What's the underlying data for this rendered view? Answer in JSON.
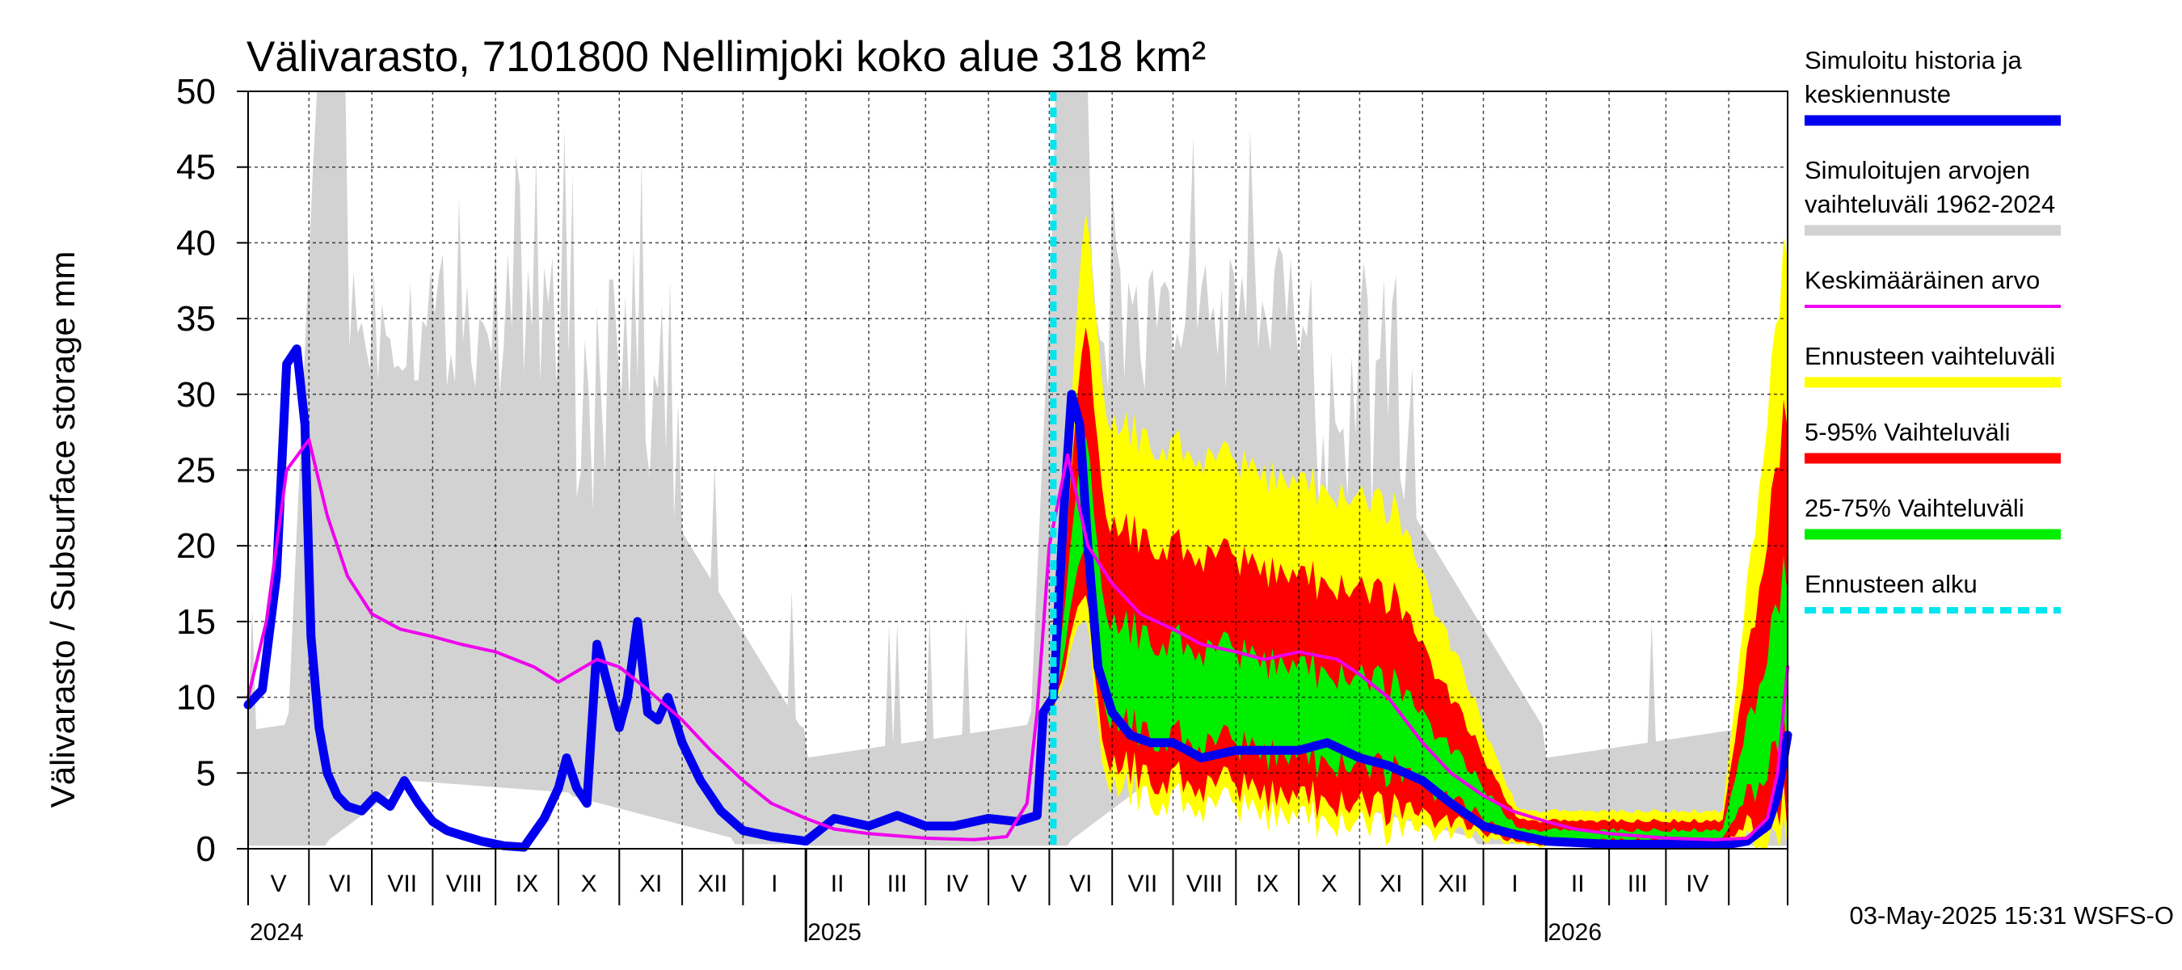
{
  "chart_data": {
    "type": "area",
    "title": "Välivarasto, 7101800 Nellimjoki koko alue 318 km²",
    "ylabel": "Välivarasto / Subsurface storage  mm",
    "ylim": [
      0,
      50
    ],
    "yticks": [
      "0",
      "5",
      "10",
      "15",
      "20",
      "25",
      "30",
      "35",
      "40",
      "45",
      "50"
    ],
    "xlim": [
      "2024-04-01",
      "2026-04-30"
    ],
    "grid": true,
    "legend_position": "right",
    "months": [
      "V",
      "VI",
      "VII",
      "VIII",
      "IX",
      "X",
      "XI",
      "XII",
      "I",
      "II",
      "III",
      "IV",
      "V",
      "VI",
      "VII",
      "VIII",
      "IX",
      "X",
      "XI",
      "XII",
      "I",
      "II",
      "III",
      "IV"
    ],
    "years": [
      "2024",
      "2025",
      "2026"
    ],
    "forecast_start": "2025-05-03",
    "series": [
      {
        "name": "Simuloitu historia ja keskiennuste",
        "color": "#0000ee",
        "x": [
          "2024-04-01",
          "2024-04-08",
          "2024-04-15",
          "2024-04-20",
          "2024-04-25",
          "2024-04-29",
          "2024-05-02",
          "2024-05-06",
          "2024-05-10",
          "2024-05-15",
          "2024-05-20",
          "2024-05-27",
          "2024-06-03",
          "2024-06-10",
          "2024-06-17",
          "2024-06-24",
          "2024-07-01",
          "2024-07-08",
          "2024-07-15",
          "2024-07-25",
          "2024-08-05",
          "2024-08-15",
          "2024-08-25",
          "2024-09-01",
          "2024-09-05",
          "2024-09-10",
          "2024-09-15",
          "2024-09-20",
          "2024-09-25",
          "2024-10-01",
          "2024-10-05",
          "2024-10-10",
          "2024-10-15",
          "2024-10-20",
          "2024-10-25",
          "2024-11-01",
          "2024-11-10",
          "2024-11-20",
          "2024-12-01",
          "2024-12-15",
          "2025-01-01",
          "2025-01-15",
          "2025-02-01",
          "2025-02-15",
          "2025-03-01",
          "2025-03-15",
          "2025-04-01",
          "2025-04-15",
          "2025-04-25",
          "2025-04-28",
          "2025-05-03",
          "2025-05-08",
          "2025-05-12",
          "2025-05-16",
          "2025-05-20",
          "2025-05-25",
          "2025-06-01",
          "2025-06-10",
          "2025-06-20",
          "2025-07-01",
          "2025-07-15",
          "2025-08-01",
          "2025-08-15",
          "2025-09-01",
          "2025-09-15",
          "2025-10-01",
          "2025-10-15",
          "2025-11-01",
          "2025-11-15",
          "2025-12-01",
          "2025-12-15",
          "2026-01-01",
          "2026-02-01",
          "2026-03-01",
          "2026-04-01",
          "2026-04-10",
          "2026-04-20",
          "2026-04-25",
          "2026-04-30"
        ],
        "y": [
          9.5,
          10.5,
          18,
          32,
          33,
          28,
          14,
          8,
          5,
          3.5,
          2.8,
          2.5,
          3.5,
          2.8,
          4.5,
          3,
          1.8,
          1.2,
          0.9,
          0.5,
          0.2,
          0.1,
          2,
          4,
          6,
          4,
          3,
          13.5,
          11,
          8,
          10,
          15,
          9,
          8.5,
          10,
          7,
          4.5,
          2.5,
          1.2,
          0.8,
          0.5,
          2,
          1.5,
          2.2,
          1.5,
          1.5,
          2.0,
          1.8,
          2.2,
          9,
          10,
          22,
          30,
          28,
          20,
          12,
          9,
          7.5,
          7,
          7,
          6,
          6.5,
          6.5,
          6.5,
          7,
          6,
          5.5,
          4.5,
          3,
          1.5,
          1,
          0.5,
          0.3,
          0.3,
          0.3,
          0.5,
          1.5,
          3.5,
          7.5
        ]
      },
      {
        "name": "Keskimääräinen arvo",
        "color": "#ee00ee",
        "x": [
          "2024-04-01",
          "2024-04-10",
          "2024-04-20",
          "2024-05-01",
          "2024-05-10",
          "2024-05-20",
          "2024-06-01",
          "2024-06-15",
          "2024-07-01",
          "2024-07-15",
          "2024-08-01",
          "2024-08-20",
          "2024-09-01",
          "2024-09-20",
          "2024-10-01",
          "2024-10-15",
          "2024-11-01",
          "2024-11-15",
          "2024-12-01",
          "2024-12-15",
          "2025-01-01",
          "2025-01-15",
          "2025-02-01",
          "2025-03-01",
          "2025-03-25",
          "2025-04-10",
          "2025-04-20",
          "2025-04-25",
          "2025-05-01",
          "2025-05-10",
          "2025-05-20",
          "2025-06-01",
          "2025-06-15",
          "2025-07-01",
          "2025-07-15",
          "2025-08-01",
          "2025-08-15",
          "2025-09-01",
          "2025-09-20",
          "2025-10-01",
          "2025-10-15",
          "2025-11-01",
          "2025-11-15",
          "2025-12-01",
          "2025-12-15",
          "2026-01-01",
          "2026-01-15",
          "2026-02-01",
          "2026-03-01",
          "2026-03-25",
          "2026-04-10",
          "2026-04-20",
          "2026-04-25",
          "2026-04-30"
        ],
        "y": [
          10,
          15,
          25,
          27,
          22,
          18,
          15.5,
          14.5,
          14,
          13.5,
          13,
          12,
          11,
          12.5,
          12,
          10.5,
          8.5,
          6.5,
          4.5,
          3,
          2,
          1.3,
          1.0,
          0.7,
          0.6,
          0.8,
          3,
          9,
          20,
          26,
          20,
          17.5,
          15.5,
          14.5,
          13.5,
          13,
          12.5,
          13,
          12.5,
          11.5,
          10,
          7,
          5,
          3.5,
          2.5,
          1.8,
          1.3,
          1,
          0.7,
          0.6,
          0.7,
          2,
          5,
          12
        ]
      }
    ],
    "bands": [
      {
        "name": "Simuloitujen arvojen vaihteluväli 1962-2024",
        "color": "#d2d2d2"
      },
      {
        "name": "Ennusteen vaihteluväli",
        "color": "#ffff00"
      },
      {
        "name": "5-95% Vaihteluväli",
        "color": "#ff0000"
      },
      {
        "name": "25-75% Vaihteluväli",
        "color": "#00ee00"
      }
    ],
    "markers": [
      {
        "name": "Ennusteen alku",
        "color": "#00e5ee"
      }
    ]
  },
  "legend": {
    "items": [
      {
        "label_lines": [
          "Simuloitu historia ja",
          "keskiennuste"
        ],
        "color": "#0000ee",
        "style": "thick"
      },
      {
        "label_lines": [
          "Simuloitujen arvojen",
          "vaihteluväli 1962-2024"
        ],
        "color": "#d2d2d2",
        "style": "thick"
      },
      {
        "label_lines": [
          "Keskimääräinen arvo"
        ],
        "color": "#ee00ee",
        "style": "thin"
      },
      {
        "label_lines": [
          "Ennusteen vaihteluväli"
        ],
        "color": "#ffff00",
        "style": "thick"
      },
      {
        "label_lines": [
          "5-95% Vaihteluväli"
        ],
        "color": "#ff0000",
        "style": "thick"
      },
      {
        "label_lines": [
          "25-75% Vaihteluväli"
        ],
        "color": "#00ee00",
        "style": "thick"
      },
      {
        "label_lines": [
          "Ennusteen alku"
        ],
        "color": "#00e5ee",
        "style": "dashed"
      }
    ]
  },
  "footer": {
    "timestamp": "03-May-2025 15:31 WSFS-O"
  }
}
